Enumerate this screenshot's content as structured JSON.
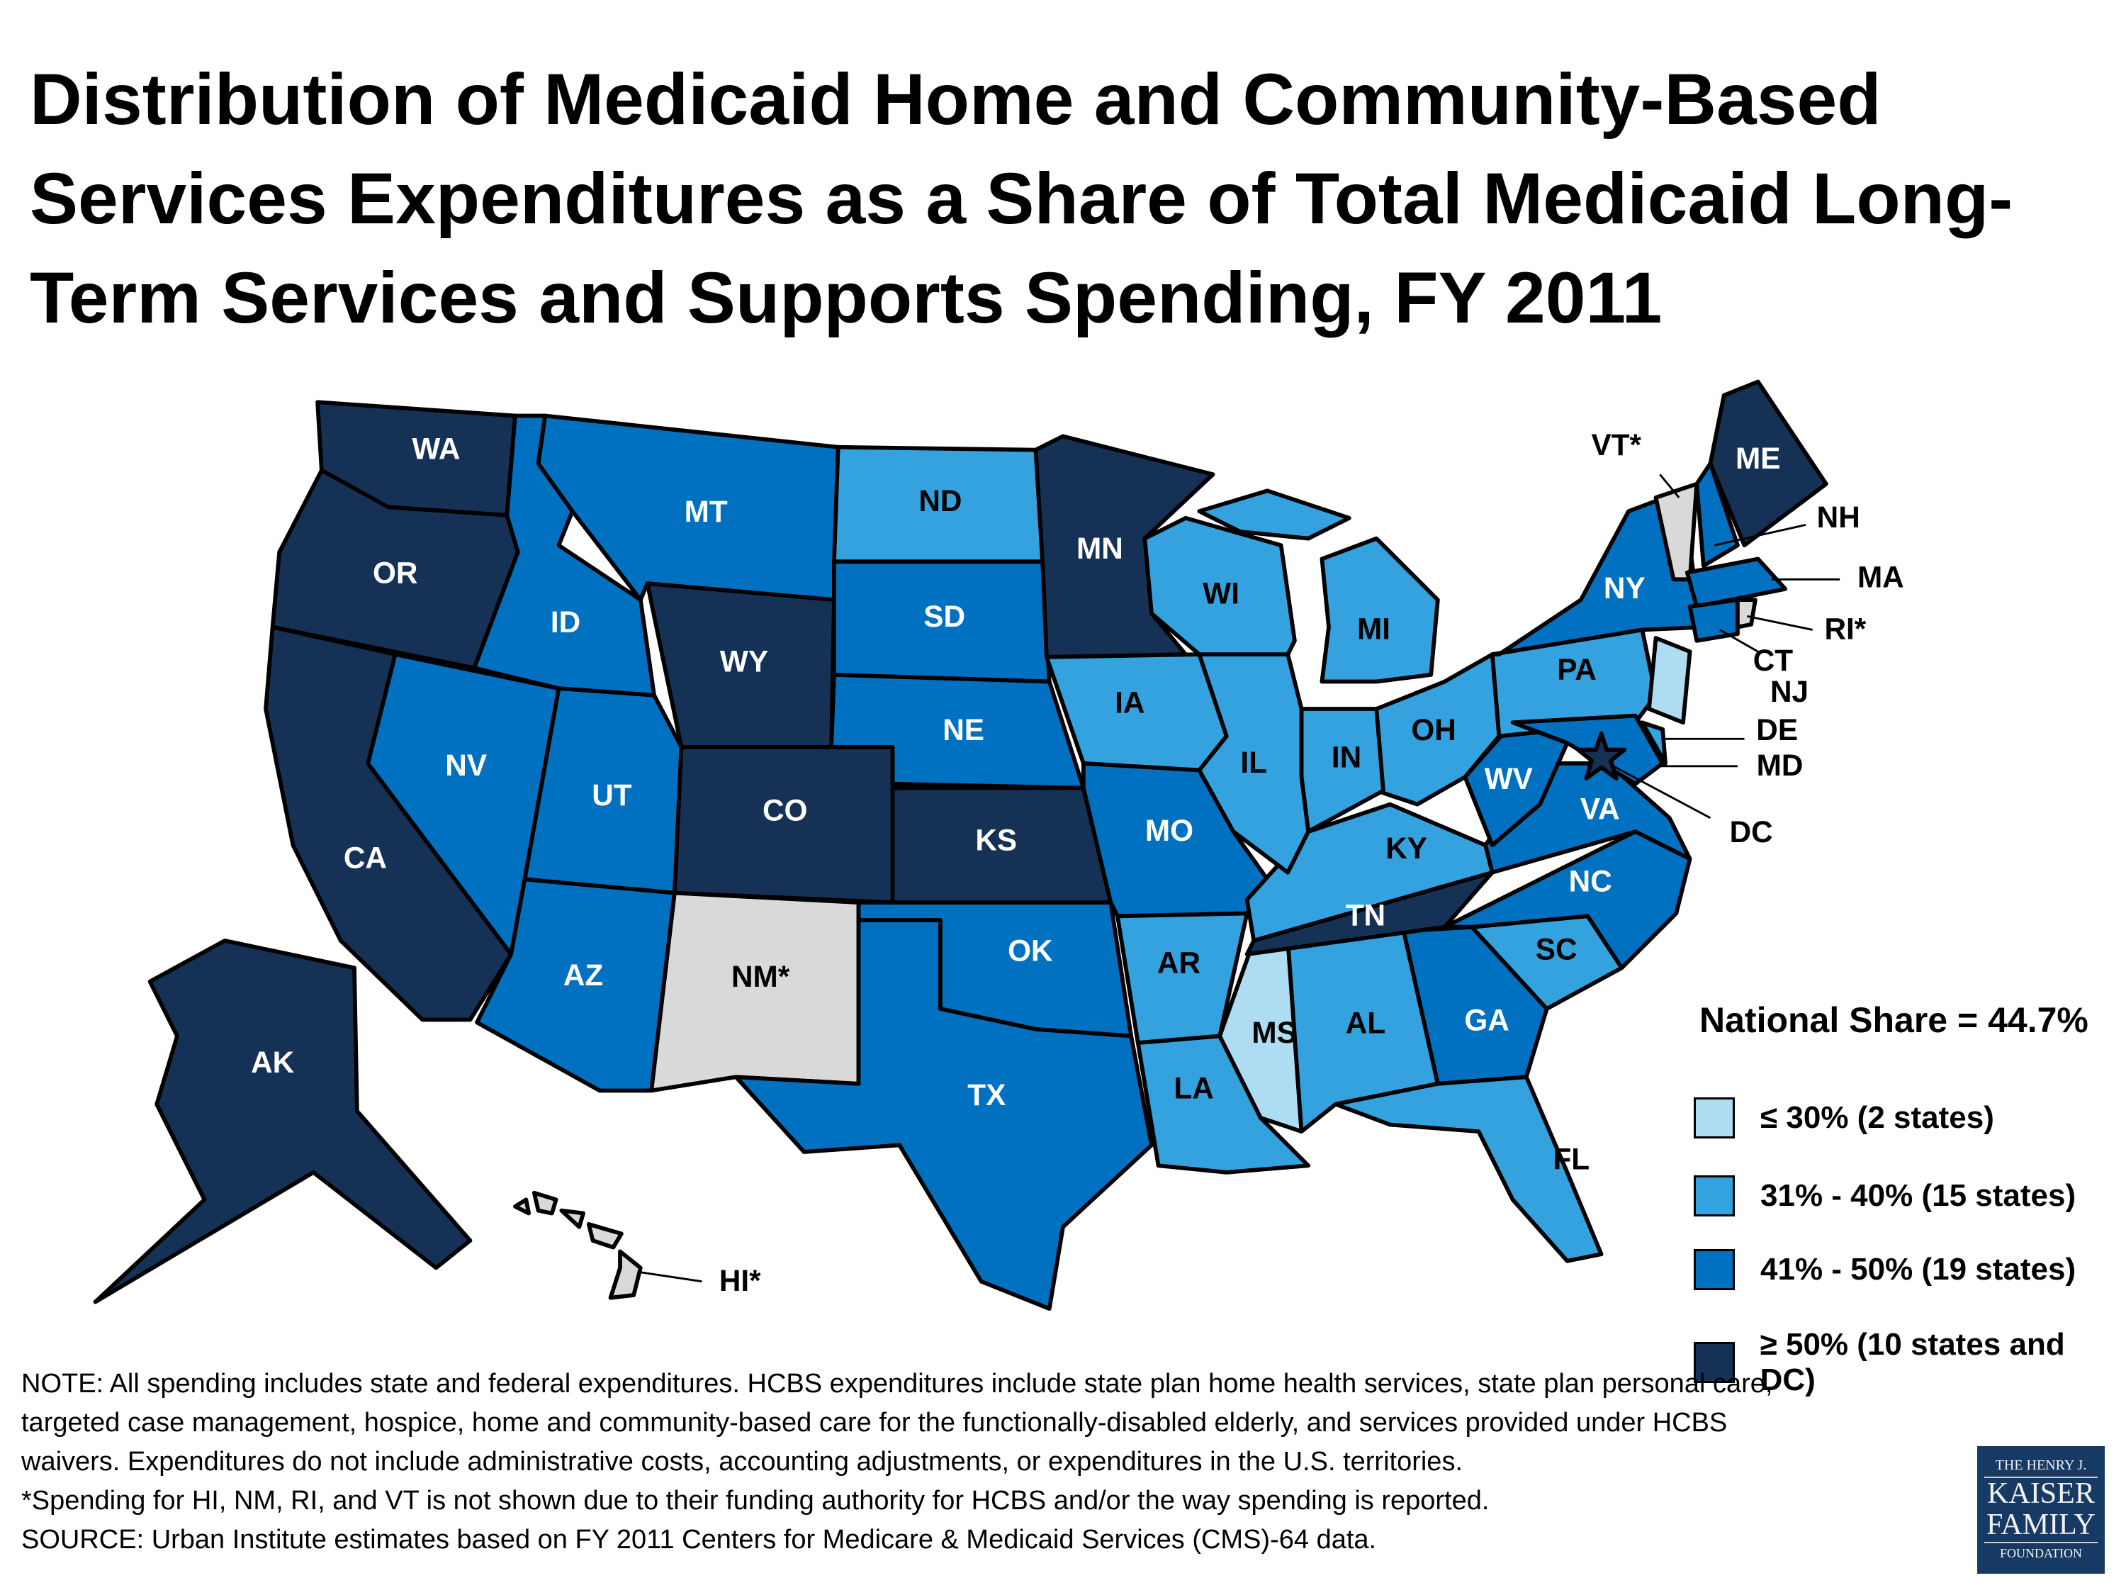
{
  "title": "Distribution of Medicaid Home and Community-Based Services Expenditures as a Share of Total Medicaid Long-Term Services and Supports Spending, FY 2011",
  "colors": {
    "le30": "#AEDCF2",
    "31to40": "#33A2DF",
    "41to50": "#0070C0",
    "ge50": "#153256",
    "not_shown": "#D9D9D9"
  },
  "states": {
    "WA": {
      "label": "WA",
      "category": "ge50"
    },
    "OR": {
      "label": "OR",
      "category": "ge50"
    },
    "CA": {
      "label": "CA",
      "category": "ge50"
    },
    "NV": {
      "label": "NV",
      "category": "41to50"
    },
    "ID": {
      "label": "ID",
      "category": "41to50"
    },
    "MT": {
      "label": "MT",
      "category": "41to50"
    },
    "WY": {
      "label": "WY",
      "category": "ge50"
    },
    "UT": {
      "label": "UT",
      "category": "41to50"
    },
    "AZ": {
      "label": "AZ",
      "category": "41to50"
    },
    "CO": {
      "label": "CO",
      "category": "ge50"
    },
    "NM": {
      "label": "NM*",
      "category": "not_shown"
    },
    "ND": {
      "label": "ND",
      "category": "31to40"
    },
    "SD": {
      "label": "SD",
      "category": "41to50"
    },
    "NE": {
      "label": "NE",
      "category": "41to50"
    },
    "KS": {
      "label": "KS",
      "category": "ge50"
    },
    "OK": {
      "label": "OK",
      "category": "41to50"
    },
    "TX": {
      "label": "TX",
      "category": "41to50"
    },
    "MN": {
      "label": "MN",
      "category": "ge50"
    },
    "IA": {
      "label": "IA",
      "category": "31to40"
    },
    "MO": {
      "label": "MO",
      "category": "41to50"
    },
    "AR": {
      "label": "AR",
      "category": "31to40"
    },
    "LA": {
      "label": "LA",
      "category": "31to40"
    },
    "MS": {
      "label": "MS",
      "category": "le30"
    },
    "AL": {
      "label": "AL",
      "category": "31to40"
    },
    "GA": {
      "label": "GA",
      "category": "41to50"
    },
    "FL": {
      "label": "FL",
      "category": "31to40"
    },
    "SC": {
      "label": "SC",
      "category": "31to40"
    },
    "NC": {
      "label": "NC",
      "category": "41to50"
    },
    "TN": {
      "label": "TN",
      "category": "ge50"
    },
    "KY": {
      "label": "KY",
      "category": "31to40"
    },
    "VA": {
      "label": "VA",
      "category": "41to50"
    },
    "WV": {
      "label": "WV",
      "category": "41to50"
    },
    "OH": {
      "label": "OH",
      "category": "31to40"
    },
    "IN": {
      "label": "IN",
      "category": "31to40"
    },
    "IL": {
      "label": "IL",
      "category": "31to40"
    },
    "WI": {
      "label": "WI",
      "category": "31to40"
    },
    "MI": {
      "label": "MI",
      "category": "31to40"
    },
    "PA": {
      "label": "PA",
      "category": "31to40"
    },
    "NY": {
      "label": "NY",
      "category": "41to50"
    },
    "NJ": {
      "label": "NJ",
      "category": "le30"
    },
    "DE": {
      "label": "DE",
      "category": "31to40"
    },
    "MD": {
      "label": "MD",
      "category": "41to50"
    },
    "DC": {
      "label": "DC",
      "category": "ge50"
    },
    "VT": {
      "label": "VT*",
      "category": "not_shown"
    },
    "NH": {
      "label": "NH",
      "category": "41to50"
    },
    "ME": {
      "label": "ME",
      "category": "ge50"
    },
    "MA": {
      "label": "MA",
      "category": "41to50"
    },
    "CT": {
      "label": "CT",
      "category": "41to50"
    },
    "RI": {
      "label": "RI*",
      "category": "not_shown"
    },
    "AK": {
      "label": "AK",
      "category": "ge50"
    },
    "HI": {
      "label": "HI*",
      "category": "not_shown"
    }
  },
  "legend": {
    "national_share": "National Share = 44.7%",
    "items": [
      {
        "key": "le30",
        "label": "≤ 30% (2 states)"
      },
      {
        "key": "31to40",
        "label": "31% - 40% (15 states)"
      },
      {
        "key": "41to50",
        "label": "41% - 50% (19 states)"
      },
      {
        "key": "ge50",
        "label": "≥ 50% (10 states and DC)"
      }
    ]
  },
  "notes": [
    "NOTE: All spending includes state and federal expenditures. HCBS expenditures include state plan home health services, state plan personal care,",
    "targeted case management, hospice, home and community-based care for the functionally-disabled elderly, and services provided under HCBS",
    "waivers. Expenditures do not include administrative costs, accounting adjustments, or expenditures in the U.S. territories.",
    "*Spending for  HI, NM, RI, and VT is not shown due to their funding authority for HCBS and/or the way spending is reported.",
    "SOURCE: Urban Institute estimates based on FY 2011 Centers for Medicare & Medicaid Services (CMS)-64 data."
  ],
  "logo": {
    "line1": "THE HENRY J.",
    "line2": "KAISER",
    "line3": "FAMILY",
    "line4": "FOUNDATION"
  }
}
